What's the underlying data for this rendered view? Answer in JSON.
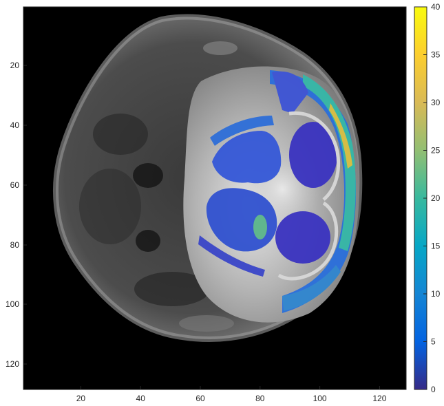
{
  "image_axes": {
    "x_ticks": [
      "20",
      "40",
      "60",
      "80",
      "100",
      "120"
    ],
    "y_ticks": [
      "20",
      "40",
      "60",
      "80",
      "100",
      "120"
    ]
  },
  "colorbar": {
    "colormap": "parula",
    "min": 0,
    "max": 40,
    "ticks": [
      "0",
      "5",
      "10",
      "15",
      "20",
      "25",
      "30",
      "35",
      "40"
    ],
    "colors": [
      "#352a87",
      "#0363e1",
      "#1485d4",
      "#06a7c6",
      "#38b99e",
      "#92bf73",
      "#d9ba56",
      "#fcce2e",
      "#f9fb0e"
    ]
  }
}
